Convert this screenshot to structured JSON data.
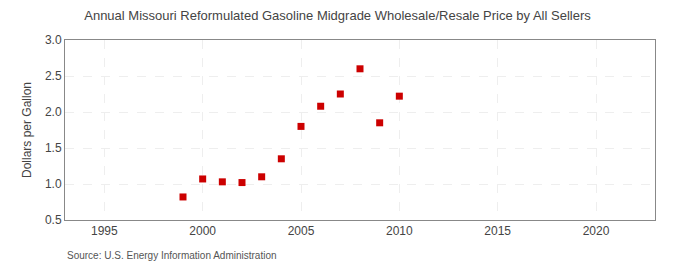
{
  "chart_data": {
    "type": "scatter",
    "title": "Annual Missouri Reformulated Gasoline Midgrade Wholesale/Resale Price by All Sellers",
    "y_label": "Dollars per Gallon",
    "annotations": [
      "Source: U.S. Energy Information Administration"
    ],
    "x": [
      1999,
      2000,
      2001,
      2002,
      2003,
      2004,
      2005,
      2006,
      2007,
      2008,
      2009,
      2010
    ],
    "values": [
      0.82,
      1.07,
      1.03,
      1.02,
      1.1,
      1.35,
      1.8,
      2.08,
      2.25,
      2.6,
      1.85,
      2.22
    ],
    "color": "#cc0000",
    "marker": "square",
    "xlim": [
      1993,
      2023
    ],
    "ylim": [
      0.5,
      3.0
    ],
    "xticks": [
      1995,
      2000,
      2005,
      2010,
      2015,
      2020
    ],
    "yticks": [
      0.5,
      {
        "value": 1.0,
        "label": "1.0"
      },
      1.5,
      {
        "value": 2.0,
        "label": "2.0"
      },
      2.5,
      {
        "value": 3.0,
        "label": "3.0"
      }
    ],
    "grid": true
  }
}
